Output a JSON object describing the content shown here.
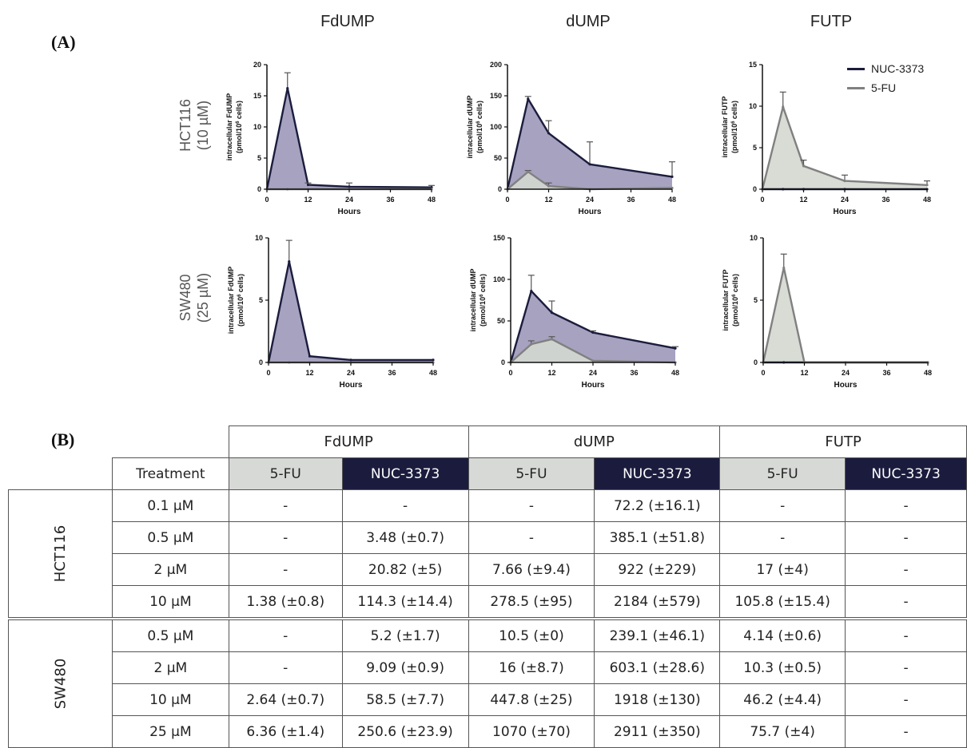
{
  "panel_a_label": "(A)",
  "panel_b_label": "(B)",
  "column_titles": [
    "FdUMP",
    "dUMP",
    "FUTP"
  ],
  "row_titles": [
    {
      "line1": "HCT116",
      "line2": "(10 µM)"
    },
    {
      "line1": "SW480",
      "line2": "(25 µM)"
    }
  ],
  "legend": [
    {
      "label": "NUC-3373",
      "color": "#1b1c3d"
    },
    {
      "label": "5-FU",
      "color": "#808080"
    }
  ],
  "colors": {
    "nuc_line": "#1b1c3d",
    "nuc_fill": "#9c98b8",
    "fu_line": "#808080",
    "fu_fill": "#d4d8d0"
  },
  "chart_data": [
    {
      "type": "area",
      "row": "HCT116",
      "metabolite": "FdUMP",
      "ylabel_line1": "intracellular FdUMP",
      "ylabel_line2": "(pmol/10",
      "ylabel_sup": "6",
      "ylabel_line2_end": " cells)",
      "xlabel": "Hours",
      "xticks": [
        "0",
        "12",
        "24",
        "36",
        "48"
      ],
      "yticks": [
        "0",
        "5",
        "10",
        "15",
        "20"
      ],
      "xlim": [
        0,
        48
      ],
      "ylim": [
        0,
        20
      ],
      "series": [
        {
          "name": "NUC-3373",
          "x": [
            0,
            6,
            12,
            24,
            48
          ],
          "y": [
            0,
            16.2,
            0.7,
            0.4,
            0.3
          ],
          "err": [
            0,
            2.5,
            0.3,
            0.6,
            0.3
          ]
        },
        {
          "name": "5-FU",
          "x": [
            0,
            6,
            12,
            24,
            48
          ],
          "y": [
            0,
            0,
            0,
            0,
            0
          ],
          "err": [
            0,
            0,
            0,
            0,
            0
          ]
        }
      ]
    },
    {
      "type": "area",
      "row": "HCT116",
      "metabolite": "dUMP",
      "ylabel_line1": "intracellular dUMP",
      "ylabel_line2": "(pmol/10",
      "ylabel_sup": "6",
      "ylabel_line2_end": " cells)",
      "xlabel": "Hours",
      "xticks": [
        "0",
        "12",
        "24",
        "36",
        "48"
      ],
      "yticks": [
        "0",
        "50",
        "100",
        "150",
        "200"
      ],
      "xlim": [
        0,
        48
      ],
      "ylim": [
        0,
        200
      ],
      "series": [
        {
          "name": "NUC-3373",
          "x": [
            0,
            6,
            12,
            24,
            48
          ],
          "y": [
            0,
            145,
            90,
            40,
            20
          ],
          "err": [
            0,
            4,
            20,
            36,
            24
          ]
        },
        {
          "name": "5-FU",
          "x": [
            0,
            6,
            12,
            24,
            48
          ],
          "y": [
            0,
            28,
            5,
            0,
            2
          ],
          "err": [
            0,
            2,
            5,
            0,
            0
          ]
        }
      ]
    },
    {
      "type": "area",
      "row": "HCT116",
      "metabolite": "FUTP",
      "ylabel_line1": "intracellular FUTP",
      "ylabel_line2": "(pmol/10",
      "ylabel_sup": "6",
      "ylabel_line2_end": " cells)",
      "xlabel": "Hours",
      "xticks": [
        "0",
        "12",
        "24",
        "36",
        "48"
      ],
      "yticks": [
        "0",
        "5",
        "10",
        "15"
      ],
      "xlim": [
        0,
        48
      ],
      "ylim": [
        0,
        15
      ],
      "series": [
        {
          "name": "NUC-3373",
          "x": [
            0,
            6,
            12,
            24,
            48
          ],
          "y": [
            0,
            0,
            0,
            0,
            0
          ],
          "err": [
            0,
            0,
            0,
            0,
            0
          ]
        },
        {
          "name": "5-FU",
          "x": [
            0,
            6,
            12,
            24,
            48
          ],
          "y": [
            0,
            9.9,
            2.8,
            1.0,
            0.5
          ],
          "err": [
            0,
            1.8,
            0.7,
            0.7,
            0.5
          ]
        }
      ]
    },
    {
      "type": "area",
      "row": "SW480",
      "metabolite": "FdUMP",
      "ylabel_line1": "intracellular FdUMP",
      "ylabel_line2": "(pmol/10",
      "ylabel_sup": "6",
      "ylabel_line2_end": " cells)",
      "xlabel": "Hours",
      "xticks": [
        "0",
        "12",
        "24",
        "36",
        "48"
      ],
      "yticks": [
        "0",
        "5",
        "10"
      ],
      "xlim": [
        0,
        48
      ],
      "ylim": [
        0,
        10
      ],
      "series": [
        {
          "name": "NUC-3373",
          "x": [
            0,
            6,
            12,
            24,
            48
          ],
          "y": [
            0,
            8.1,
            0.5,
            0.2,
            0.2
          ],
          "err": [
            0,
            1.7,
            0,
            0,
            0
          ]
        },
        {
          "name": "5-FU",
          "x": [
            0,
            6,
            12,
            24,
            48
          ],
          "y": [
            0,
            0,
            0,
            0,
            0
          ],
          "err": [
            0,
            0,
            0,
            0,
            0
          ]
        }
      ]
    },
    {
      "type": "area",
      "row": "SW480",
      "metabolite": "dUMP",
      "ylabel_line1": "intracellular dUMP",
      "ylabel_line2": "(pmol/10",
      "ylabel_sup": "6",
      "ylabel_line2_end": " cells)",
      "xlabel": "Hours",
      "xticks": [
        "0",
        "12",
        "24",
        "36",
        "48"
      ],
      "yticks": [
        "0",
        "50",
        "100",
        "150"
      ],
      "xlim": [
        0,
        48
      ],
      "ylim": [
        0,
        150
      ],
      "series": [
        {
          "name": "NUC-3373",
          "x": [
            0,
            6,
            12,
            24,
            48
          ],
          "y": [
            0,
            86,
            60,
            36,
            17
          ],
          "err": [
            0,
            19,
            14,
            2,
            2
          ]
        },
        {
          "name": "5-FU",
          "x": [
            0,
            6,
            12,
            24,
            48
          ],
          "y": [
            0,
            22,
            28,
            2,
            0
          ],
          "err": [
            0,
            4,
            3,
            0,
            0
          ]
        }
      ]
    },
    {
      "type": "area",
      "row": "SW480",
      "metabolite": "FUTP",
      "ylabel_line1": "intracellular FUTP",
      "ylabel_line2": "(pmol/10",
      "ylabel_sup": "6",
      "ylabel_line2_end": " cells)",
      "xlabel": "Hours",
      "xticks": [
        "0",
        "12",
        "24",
        "36",
        "48"
      ],
      "yticks": [
        "0",
        "5",
        "10"
      ],
      "xlim": [
        0,
        48
      ],
      "ylim": [
        0,
        10
      ],
      "series": [
        {
          "name": "NUC-3373",
          "x": [
            0,
            6,
            12,
            24,
            48
          ],
          "y": [
            0,
            0,
            0,
            0,
            0
          ],
          "err": [
            0,
            0,
            0,
            0,
            0
          ]
        },
        {
          "name": "5-FU",
          "x": [
            0,
            6,
            12,
            24,
            48
          ],
          "y": [
            0,
            7.6,
            0,
            0,
            0
          ],
          "err": [
            0,
            1.1,
            0,
            0,
            0
          ]
        }
      ]
    }
  ],
  "table": {
    "groups": [
      "FdUMP",
      "dUMP",
      "FUTP"
    ],
    "treatment_header": "Treatment",
    "sub_headers": [
      "5-FU",
      "NUC-3373",
      "5-FU",
      "NUC-3373",
      "5-FU",
      "NUC-3373"
    ],
    "blocks": [
      {
        "cell_line": "HCT116",
        "rows": [
          {
            "conc": "0.1 µM",
            "values": [
              "-",
              "-",
              "-",
              "72.2 (±16.1)",
              "-",
              "-"
            ]
          },
          {
            "conc": "0.5 µM",
            "values": [
              "-",
              "3.48 (±0.7)",
              "-",
              "385.1 (±51.8)",
              "-",
              "-"
            ]
          },
          {
            "conc": "2 µM",
            "values": [
              "-",
              "20.82 (±5)",
              "7.66 (±9.4)",
              "922 (±229)",
              "17 (±4)",
              "-"
            ]
          },
          {
            "conc": "10 µM",
            "values": [
              "1.38 (±0.8)",
              "114.3 (±14.4)",
              "278.5 (±95)",
              "2184 (±579)",
              "105.8 (±15.4)",
              "-"
            ]
          }
        ]
      },
      {
        "cell_line": "SW480",
        "rows": [
          {
            "conc": "0.5 µM",
            "values": [
              "-",
              "5.2 (±1.7)",
              "10.5 (±0)",
              "239.1 (±46.1)",
              "4.14 (±0.6)",
              "-"
            ]
          },
          {
            "conc": "2 µM",
            "values": [
              "-",
              "9.09 (±0.9)",
              "16 (±8.7)",
              "603.1 (±28.6)",
              "10.3 (±0.5)",
              "-"
            ]
          },
          {
            "conc": "10 µM",
            "values": [
              "2.64 (±0.7)",
              "58.5 (±7.7)",
              "447.8 (±25)",
              "1918 (±130)",
              "46.2 (±4.4)",
              "-"
            ]
          },
          {
            "conc": "25 µM",
            "values": [
              "6.36 (±1.4)",
              "250.6 (±23.9)",
              "1070 (±70)",
              "2911 (±350)",
              "75.7 (±4)",
              "-"
            ]
          }
        ]
      }
    ]
  }
}
